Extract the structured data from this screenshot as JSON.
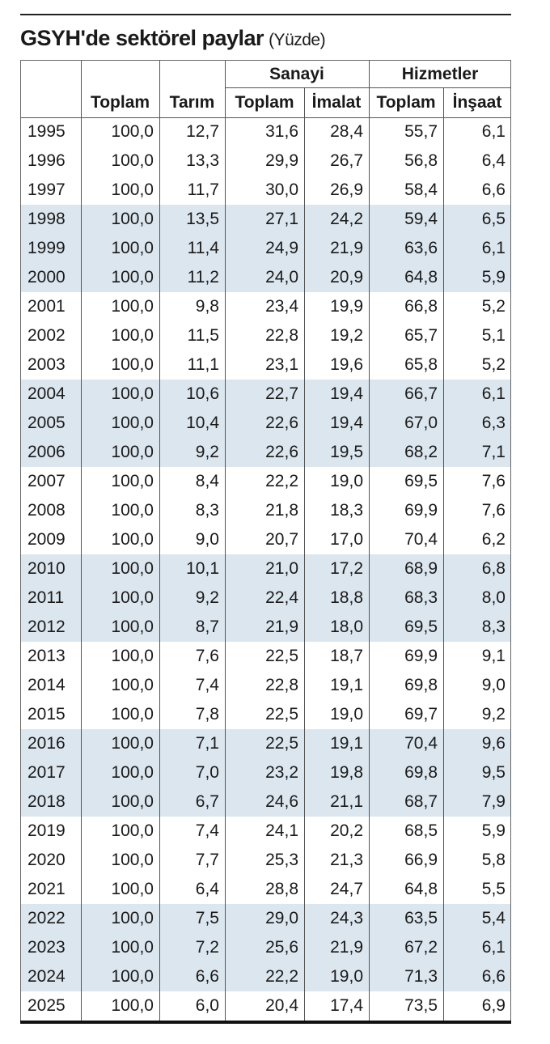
{
  "header": {
    "title": "GSYH'de sektörel paylar",
    "unit": "(Yüzde)"
  },
  "table": {
    "groups": [
      "Sanayi",
      "Hizmetler"
    ],
    "columns": [
      "Toplam",
      "Tarım",
      "Toplam",
      "İmalat",
      "Toplam",
      "İnşaat"
    ],
    "rows": [
      [
        "1995",
        "100,0",
        "12,7",
        "31,6",
        "28,4",
        "55,7",
        "6,1"
      ],
      [
        "1996",
        "100,0",
        "13,3",
        "29,9",
        "26,7",
        "56,8",
        "6,4"
      ],
      [
        "1997",
        "100,0",
        "11,7",
        "30,0",
        "26,9",
        "58,4",
        "6,6"
      ],
      [
        "1998",
        "100,0",
        "13,5",
        "27,1",
        "24,2",
        "59,4",
        "6,5"
      ],
      [
        "1999",
        "100,0",
        "11,4",
        "24,9",
        "21,9",
        "63,6",
        "6,1"
      ],
      [
        "2000",
        "100,0",
        "11,2",
        "24,0",
        "20,9",
        "64,8",
        "5,9"
      ],
      [
        "2001",
        "100,0",
        "9,8",
        "23,4",
        "19,9",
        "66,8",
        "5,2"
      ],
      [
        "2002",
        "100,0",
        "11,5",
        "22,8",
        "19,2",
        "65,7",
        "5,1"
      ],
      [
        "2003",
        "100,0",
        "11,1",
        "23,1",
        "19,6",
        "65,8",
        "5,2"
      ],
      [
        "2004",
        "100,0",
        "10,6",
        "22,7",
        "19,4",
        "66,7",
        "6,1"
      ],
      [
        "2005",
        "100,0",
        "10,4",
        "22,6",
        "19,4",
        "67,0",
        "6,3"
      ],
      [
        "2006",
        "100,0",
        "9,2",
        "22,6",
        "19,5",
        "68,2",
        "7,1"
      ],
      [
        "2007",
        "100,0",
        "8,4",
        "22,2",
        "19,0",
        "69,5",
        "7,6"
      ],
      [
        "2008",
        "100,0",
        "8,3",
        "21,8",
        "18,3",
        "69,9",
        "7,6"
      ],
      [
        "2009",
        "100,0",
        "9,0",
        "20,7",
        "17,0",
        "70,4",
        "6,2"
      ],
      [
        "2010",
        "100,0",
        "10,1",
        "21,0",
        "17,2",
        "68,9",
        "6,8"
      ],
      [
        "2011",
        "100,0",
        "9,2",
        "22,4",
        "18,8",
        "68,3",
        "8,0"
      ],
      [
        "2012",
        "100,0",
        "8,7",
        "21,9",
        "18,0",
        "69,5",
        "8,3"
      ],
      [
        "2013",
        "100,0",
        "7,6",
        "22,5",
        "18,7",
        "69,9",
        "9,1"
      ],
      [
        "2014",
        "100,0",
        "7,4",
        "22,8",
        "19,1",
        "69,8",
        "9,0"
      ],
      [
        "2015",
        "100,0",
        "7,8",
        "22,5",
        "19,0",
        "69,7",
        "9,2"
      ],
      [
        "2016",
        "100,0",
        "7,1",
        "22,5",
        "19,1",
        "70,4",
        "9,6"
      ],
      [
        "2017",
        "100,0",
        "7,0",
        "23,2",
        "19,8",
        "69,8",
        "9,5"
      ],
      [
        "2018",
        "100,0",
        "6,7",
        "24,6",
        "21,1",
        "68,7",
        "7,9"
      ],
      [
        "2019",
        "100,0",
        "7,4",
        "24,1",
        "20,2",
        "68,5",
        "5,9"
      ],
      [
        "2020",
        "100,0",
        "7,7",
        "25,3",
        "21,3",
        "66,9",
        "5,8"
      ],
      [
        "2021",
        "100,0",
        "6,4",
        "28,8",
        "24,7",
        "64,8",
        "5,5"
      ],
      [
        "2022",
        "100,0",
        "7,5",
        "29,0",
        "24,3",
        "63,5",
        "5,4"
      ],
      [
        "2023",
        "100,0",
        "7,2",
        "25,6",
        "21,9",
        "67,2",
        "6,1"
      ],
      [
        "2024",
        "100,0",
        "6,6",
        "22,2",
        "19,0",
        "71,3",
        "6,6"
      ],
      [
        "2025",
        "100,0",
        "6,0",
        "20,4",
        "17,4",
        "73,5",
        "6,9"
      ]
    ]
  }
}
